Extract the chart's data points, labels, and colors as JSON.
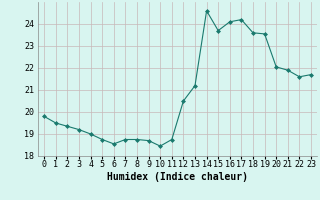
{
  "x": [
    0,
    1,
    2,
    3,
    4,
    5,
    6,
    7,
    8,
    9,
    10,
    11,
    12,
    13,
    14,
    15,
    16,
    17,
    18,
    19,
    20,
    21,
    22,
    23
  ],
  "y": [
    19.8,
    19.5,
    19.35,
    19.2,
    19.0,
    18.75,
    18.55,
    18.75,
    18.75,
    18.7,
    18.45,
    18.75,
    20.5,
    21.2,
    24.6,
    23.7,
    24.1,
    24.2,
    23.6,
    23.55,
    22.05,
    21.9,
    21.6,
    21.7
  ],
  "xlabel": "Humidex (Indice chaleur)",
  "ylim": [
    18,
    25
  ],
  "xlim": [
    -0.5,
    23.5
  ],
  "yticks": [
    18,
    19,
    20,
    21,
    22,
    23,
    24
  ],
  "xticks": [
    0,
    1,
    2,
    3,
    4,
    5,
    6,
    7,
    8,
    9,
    10,
    11,
    12,
    13,
    14,
    15,
    16,
    17,
    18,
    19,
    20,
    21,
    22,
    23
  ],
  "line_color": "#1a7a6e",
  "marker": "D",
  "marker_size": 2,
  "bg_color": "#d8f5f0",
  "grid_color": "#c8b8b8",
  "label_fontsize": 7,
  "tick_fontsize": 6
}
